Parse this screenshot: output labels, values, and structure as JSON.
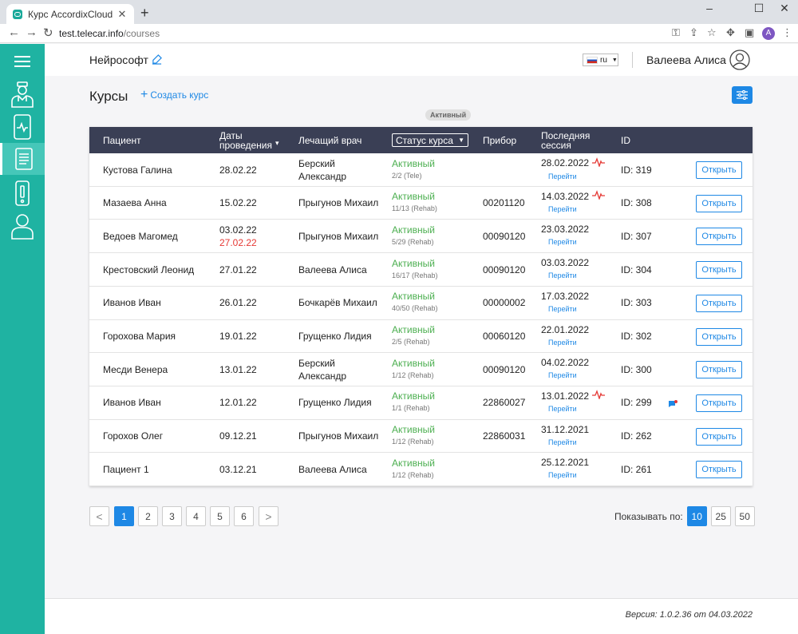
{
  "browser": {
    "tab_title": "Курс AccordixCloud",
    "tab_close": "✕",
    "new_tab": "+",
    "url_host": "test.telecar.info",
    "url_path": "/courses",
    "profile_initial": "A",
    "window_controls": {
      "minimize": "–",
      "maximize": "☐",
      "close": "✕"
    }
  },
  "header": {
    "org_name": "Нейрософт",
    "language": "ru",
    "user_name": "Валеева Алиса"
  },
  "page": {
    "title": "Курсы",
    "create_label": "Создать курс",
    "filter_chip": "Активный"
  },
  "table": {
    "columns": {
      "patient": "Пациент",
      "dates": "Даты проведения",
      "doctor": "Лечащий врач",
      "status": "Статус курса",
      "device": "Прибор",
      "last_session": "Последняя сессия",
      "id": "ID"
    },
    "rows": [
      {
        "patient": "Кустова Галина",
        "date1": "28.02.22",
        "date2": "",
        "doctor": "Берский Александр",
        "status": "Активный",
        "status_sub": "2/2 (Tele)",
        "device": "",
        "session_date": "28.02.2022",
        "session_link": "Перейти",
        "ecg": true,
        "id": "ID: 319",
        "msg": false,
        "open": "Открыть"
      },
      {
        "patient": "Мазаева Анна",
        "date1": "15.02.22",
        "date2": "",
        "doctor": "Прыгунов Михаил",
        "status": "Активный",
        "status_sub": "11/13 (Rehab)",
        "device": "00201120",
        "session_date": "14.03.2022",
        "session_link": "Перейти",
        "ecg": true,
        "id": "ID: 308",
        "msg": false,
        "open": "Открыть"
      },
      {
        "patient": "Ведоев Магомед",
        "date1": "03.02.22",
        "date2": "27.02.22",
        "doctor": "Прыгунов Михаил",
        "status": "Активный",
        "status_sub": "5/29 (Rehab)",
        "device": "00090120",
        "session_date": "23.03.2022",
        "session_link": "Перейти",
        "ecg": false,
        "id": "ID: 307",
        "msg": false,
        "open": "Открыть"
      },
      {
        "patient": "Крестовский Леонид",
        "date1": "27.01.22",
        "date2": "",
        "doctor": "Валеева Алиса",
        "status": "Активный",
        "status_sub": "16/17 (Rehab)",
        "device": "00090120",
        "session_date": "03.03.2022",
        "session_link": "Перейти",
        "ecg": false,
        "id": "ID: 304",
        "msg": false,
        "open": "Открыть"
      },
      {
        "patient": "Иванов Иван",
        "date1": "26.01.22",
        "date2": "",
        "doctor": "Бочкарёв Михаил",
        "status": "Активный",
        "status_sub": "40/50 (Rehab)",
        "device": "00000002",
        "session_date": "17.03.2022",
        "session_link": "Перейти",
        "ecg": false,
        "id": "ID: 303",
        "msg": false,
        "open": "Открыть"
      },
      {
        "patient": "Горохова Мария",
        "date1": "19.01.22",
        "date2": "",
        "doctor": "Грущенко Лидия",
        "status": "Активный",
        "status_sub": "2/5 (Rehab)",
        "device": "00060120",
        "session_date": "22.01.2022",
        "session_link": "Перейти",
        "ecg": false,
        "id": "ID: 302",
        "msg": false,
        "open": "Открыть"
      },
      {
        "patient": "Месди Венера",
        "date1": "13.01.22",
        "date2": "",
        "doctor": "Берский Александр",
        "status": "Активный",
        "status_sub": "1/12 (Rehab)",
        "device": "00090120",
        "session_date": "04.02.2022",
        "session_link": "Перейти",
        "ecg": false,
        "id": "ID: 300",
        "msg": false,
        "open": "Открыть"
      },
      {
        "patient": "Иванов Иван",
        "date1": "12.01.22",
        "date2": "",
        "doctor": "Грущенко Лидия",
        "status": "Активный",
        "status_sub": "1/1 (Rehab)",
        "device": "22860027",
        "session_date": "13.01.2022",
        "session_link": "Перейти",
        "ecg": true,
        "id": "ID: 299",
        "msg": true,
        "open": "Открыть"
      },
      {
        "patient": "Горохов Олег",
        "date1": "09.12.21",
        "date2": "",
        "doctor": "Прыгунов Михаил",
        "status": "Активный",
        "status_sub": "1/12 (Rehab)",
        "device": "22860031",
        "session_date": "31.12.2021",
        "session_link": "Перейти",
        "ecg": false,
        "id": "ID: 262",
        "msg": false,
        "open": "Открыть"
      },
      {
        "patient": "Пациент 1",
        "date1": "03.12.21",
        "date2": "",
        "doctor": "Валеева Алиса",
        "status": "Активный",
        "status_sub": "1/12 (Rehab)",
        "device": "",
        "session_date": "25.12.2021",
        "session_link": "Перейти",
        "ecg": false,
        "id": "ID: 261",
        "msg": false,
        "open": "Открыть"
      }
    ]
  },
  "pagination": {
    "prev": "<",
    "next": ">",
    "pages": [
      "1",
      "2",
      "3",
      "4",
      "5",
      "6"
    ],
    "current": "1",
    "per_page_label": "Показывать по:",
    "per_page_options": [
      "10",
      "25",
      "50"
    ],
    "per_page_selected": "10"
  },
  "footer": {
    "version": "Версия: 1.0.2.36 от 04.03.2022"
  },
  "colors": {
    "sidebar": "#1fb3a2",
    "table_header": "#3a3f55",
    "accent": "#1e88e5",
    "status_active": "#4caf50",
    "date_warning": "#e53935"
  }
}
